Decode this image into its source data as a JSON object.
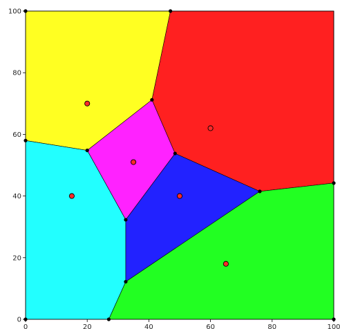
{
  "chart_data": {
    "type": "scatter",
    "subtype": "voronoi",
    "title": "",
    "xlabel": "",
    "ylabel": "",
    "xlim": [
      0,
      100
    ],
    "ylim": [
      0,
      100
    ],
    "xticks": [
      0,
      20,
      40,
      60,
      80,
      100
    ],
    "yticks": [
      0,
      20,
      40,
      60,
      80,
      100
    ],
    "xtick_labels": [
      "0",
      "20",
      "40",
      "60",
      "80",
      "100"
    ],
    "ytick_labels": [
      "0",
      "20",
      "40",
      "60",
      "80",
      "100"
    ],
    "grid": false,
    "legend": "none",
    "sites": [
      {
        "x": 20,
        "y": 70
      },
      {
        "x": 60,
        "y": 62
      },
      {
        "x": 35,
        "y": 51
      },
      {
        "x": 15,
        "y": 40
      },
      {
        "x": 50,
        "y": 40
      },
      {
        "x": 65,
        "y": 18
      }
    ],
    "vertices": [
      {
        "x": 0,
        "y": 100
      },
      {
        "x": 47,
        "y": 100
      },
      {
        "x": 41,
        "y": 71.2
      },
      {
        "x": 20,
        "y": 54.8
      },
      {
        "x": 0,
        "y": 58
      },
      {
        "x": 48.5,
        "y": 53.8
      },
      {
        "x": 32.5,
        "y": 32.3
      },
      {
        "x": 32.5,
        "y": 12.2
      },
      {
        "x": 76,
        "y": 41.5
      },
      {
        "x": 100,
        "y": 44.2
      },
      {
        "x": 100,
        "y": 0
      },
      {
        "x": 27,
        "y": 0
      },
      {
        "x": 0,
        "y": 0
      }
    ],
    "regions": [
      {
        "color": "#ffff22",
        "polygon": [
          [
            0,
            100
          ],
          [
            47,
            100
          ],
          [
            41,
            71.2
          ],
          [
            20,
            54.8
          ],
          [
            0,
            58
          ]
        ]
      },
      {
        "color": "#ff2020",
        "polygon": [
          [
            47,
            100
          ],
          [
            100,
            100
          ],
          [
            100,
            44.2
          ],
          [
            76,
            41.5
          ],
          [
            48.5,
            53.8
          ],
          [
            41,
            71.2
          ]
        ]
      },
      {
        "color": "#ff22ff",
        "polygon": [
          [
            20,
            54.8
          ],
          [
            41,
            71.2
          ],
          [
            48.5,
            53.8
          ],
          [
            32.5,
            32.3
          ]
        ]
      },
      {
        "color": "#22ffff",
        "polygon": [
          [
            0,
            58
          ],
          [
            20,
            54.8
          ],
          [
            32.5,
            32.3
          ],
          [
            32.5,
            12.2
          ],
          [
            27,
            0
          ],
          [
            0,
            0
          ]
        ]
      },
      {
        "color": "#2222ff",
        "polygon": [
          [
            32.5,
            32.3
          ],
          [
            48.5,
            53.8
          ],
          [
            76,
            41.5
          ],
          [
            32.5,
            12.2
          ]
        ]
      },
      {
        "color": "#22ff22",
        "polygon": [
          [
            32.5,
            12.2
          ],
          [
            76,
            41.5
          ],
          [
            100,
            44.2
          ],
          [
            100,
            0
          ],
          [
            27,
            0
          ]
        ]
      }
    ],
    "site_color": "#ff2a2a"
  }
}
